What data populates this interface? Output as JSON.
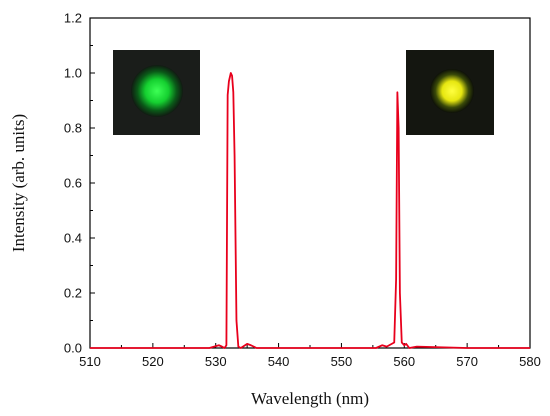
{
  "chart_data": {
    "type": "line",
    "title": "",
    "xlabel": "Wavelength (nm)",
    "ylabel": "Intensity (arb. units)",
    "xlim": [
      510,
      580
    ],
    "ylim": [
      0.0,
      1.2
    ],
    "x_ticks": [
      "510",
      "520",
      "530",
      "540",
      "550",
      "560",
      "570",
      "580"
    ],
    "y_ticks": [
      "0.0",
      "0.2",
      "0.4",
      "0.6",
      "0.8",
      "1.0",
      "1.2"
    ],
    "grid": false,
    "legend": "none",
    "series": [
      {
        "color": "#e8001c",
        "x": [
          510,
          529.0,
          530.5,
          531.0,
          531.4,
          531.7,
          531.9,
          532.1,
          532.4,
          532.6,
          532.8,
          533.0,
          533.3,
          533.6,
          534.0,
          535.0,
          535.6,
          536.5,
          540,
          550,
          555.5,
          556.5,
          557.2,
          558.0,
          558.4,
          558.7,
          558.9,
          559.1,
          559.3,
          559.6,
          560.0,
          560.3,
          560.8,
          562.0,
          570,
          580
        ],
        "y": [
          0.0,
          0.0,
          0.01,
          0.005,
          0.0,
          0.01,
          0.92,
          0.97,
          1.0,
          0.99,
          0.93,
          0.7,
          0.1,
          0.005,
          0.0,
          0.015,
          0.01,
          0.0,
          0.0,
          0.0,
          0.0,
          0.01,
          0.005,
          0.015,
          0.02,
          0.25,
          0.93,
          0.8,
          0.2,
          0.02,
          0.01,
          0.015,
          0.0,
          0.005,
          0.0,
          0.0
        ]
      }
    ],
    "insets": [
      {
        "name": "green-spot",
        "core_color": "#20e040",
        "at_x": 522.5
      },
      {
        "name": "yellow-spot",
        "core_color": "#ffff20",
        "at_x": 567.5
      }
    ]
  }
}
